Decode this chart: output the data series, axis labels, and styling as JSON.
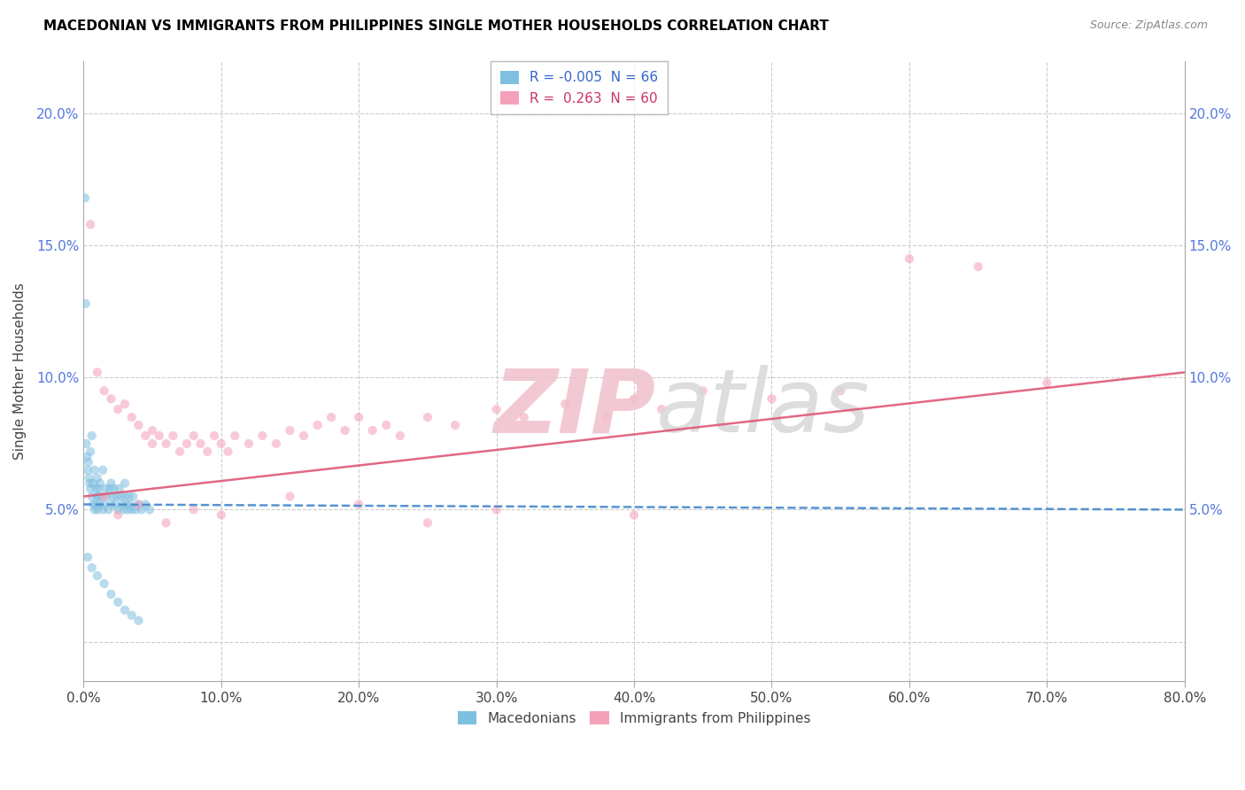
{
  "title": "MACEDONIAN VS IMMIGRANTS FROM PHILIPPINES SINGLE MOTHER HOUSEHOLDS CORRELATION CHART",
  "source": "Source: ZipAtlas.com",
  "ylabel": "Single Mother Households",
  "legend_labels": [
    "Macedonians",
    "Immigrants from Philippines"
  ],
  "R_macedonian": -0.005,
  "N_macedonian": 66,
  "R_philippines": 0.263,
  "N_philippines": 60,
  "color_macedonian": "#7fbfdf",
  "color_philippines": "#f4a0b8",
  "xlim": [
    0.0,
    80.0
  ],
  "ylim": [
    -1.5,
    22.0
  ],
  "xticks": [
    0.0,
    10.0,
    20.0,
    30.0,
    40.0,
    50.0,
    60.0,
    70.0,
    80.0
  ],
  "yticks": [
    0.0,
    5.0,
    10.0,
    15.0,
    20.0
  ],
  "ytick_labels_left": [
    "",
    "5.0%",
    "10.0%",
    "15.0%",
    "20.0%"
  ],
  "ytick_labels_right": [
    "",
    "5.0%",
    "10.0%",
    "15.0%",
    "20.0%"
  ],
  "xtick_labels": [
    "0.0%",
    "10.0%",
    "20.0%",
    "30.0%",
    "40.0%",
    "50.0%",
    "60.0%",
    "70.0%",
    "80.0%"
  ],
  "macedonian_x": [
    0.1,
    0.15,
    0.2,
    0.25,
    0.3,
    0.35,
    0.4,
    0.45,
    0.5,
    0.5,
    0.6,
    0.6,
    0.7,
    0.7,
    0.8,
    0.8,
    0.9,
    0.9,
    1.0,
    1.0,
    1.0,
    1.1,
    1.1,
    1.2,
    1.2,
    1.3,
    1.4,
    1.4,
    1.5,
    1.6,
    1.7,
    1.8,
    1.9,
    2.0,
    2.0,
    2.1,
    2.2,
    2.3,
    2.4,
    2.5,
    2.6,
    2.7,
    2.8,
    2.9,
    3.0,
    3.0,
    3.1,
    3.2,
    3.3,
    3.4,
    3.5,
    3.6,
    3.8,
    4.0,
    4.2,
    4.5,
    4.8,
    0.3,
    0.6,
    1.0,
    1.5,
    2.0,
    2.5,
    3.0,
    3.5,
    4.0
  ],
  "macedonian_y": [
    16.8,
    12.8,
    7.5,
    7.0,
    6.5,
    6.8,
    6.2,
    6.0,
    5.8,
    7.2,
    5.5,
    7.8,
    6.0,
    5.2,
    6.5,
    5.0,
    5.8,
    5.2,
    5.5,
    5.0,
    6.2,
    5.5,
    5.8,
    5.2,
    6.0,
    5.5,
    5.0,
    6.5,
    5.2,
    5.8,
    5.5,
    5.0,
    5.8,
    5.2,
    6.0,
    5.5,
    5.8,
    5.2,
    5.5,
    5.0,
    5.8,
    5.5,
    5.2,
    5.0,
    5.5,
    6.0,
    5.2,
    5.0,
    5.5,
    5.2,
    5.0,
    5.5,
    5.0,
    5.2,
    5.0,
    5.2,
    5.0,
    3.2,
    2.8,
    2.5,
    2.2,
    1.8,
    1.5,
    1.2,
    1.0,
    0.8
  ],
  "philippines_x": [
    0.5,
    1.0,
    1.5,
    2.0,
    2.5,
    3.0,
    3.5,
    4.0,
    4.5,
    5.0,
    5.0,
    5.5,
    6.0,
    6.5,
    7.0,
    7.5,
    8.0,
    8.5,
    9.0,
    9.5,
    10.0,
    10.5,
    11.0,
    12.0,
    13.0,
    14.0,
    15.0,
    16.0,
    17.0,
    18.0,
    19.0,
    20.0,
    21.0,
    22.0,
    23.0,
    25.0,
    27.0,
    30.0,
    32.0,
    35.0,
    38.0,
    40.0,
    42.0,
    45.0,
    50.0,
    55.0,
    60.0,
    65.0,
    70.0,
    1.5,
    2.5,
    4.0,
    6.0,
    8.0,
    10.0,
    15.0,
    20.0,
    25.0,
    30.0,
    40.0
  ],
  "philippines_y": [
    15.8,
    10.2,
    9.5,
    9.2,
    8.8,
    9.0,
    8.5,
    8.2,
    7.8,
    8.0,
    7.5,
    7.8,
    7.5,
    7.8,
    7.2,
    7.5,
    7.8,
    7.5,
    7.2,
    7.8,
    7.5,
    7.2,
    7.8,
    7.5,
    7.8,
    7.5,
    8.0,
    7.8,
    8.2,
    8.5,
    8.0,
    8.5,
    8.0,
    8.2,
    7.8,
    8.5,
    8.2,
    8.8,
    8.5,
    9.0,
    8.5,
    9.2,
    8.8,
    9.5,
    9.2,
    9.5,
    14.5,
    14.2,
    9.8,
    5.5,
    4.8,
    5.2,
    4.5,
    5.0,
    4.8,
    5.5,
    5.2,
    4.5,
    5.0,
    4.8
  ]
}
